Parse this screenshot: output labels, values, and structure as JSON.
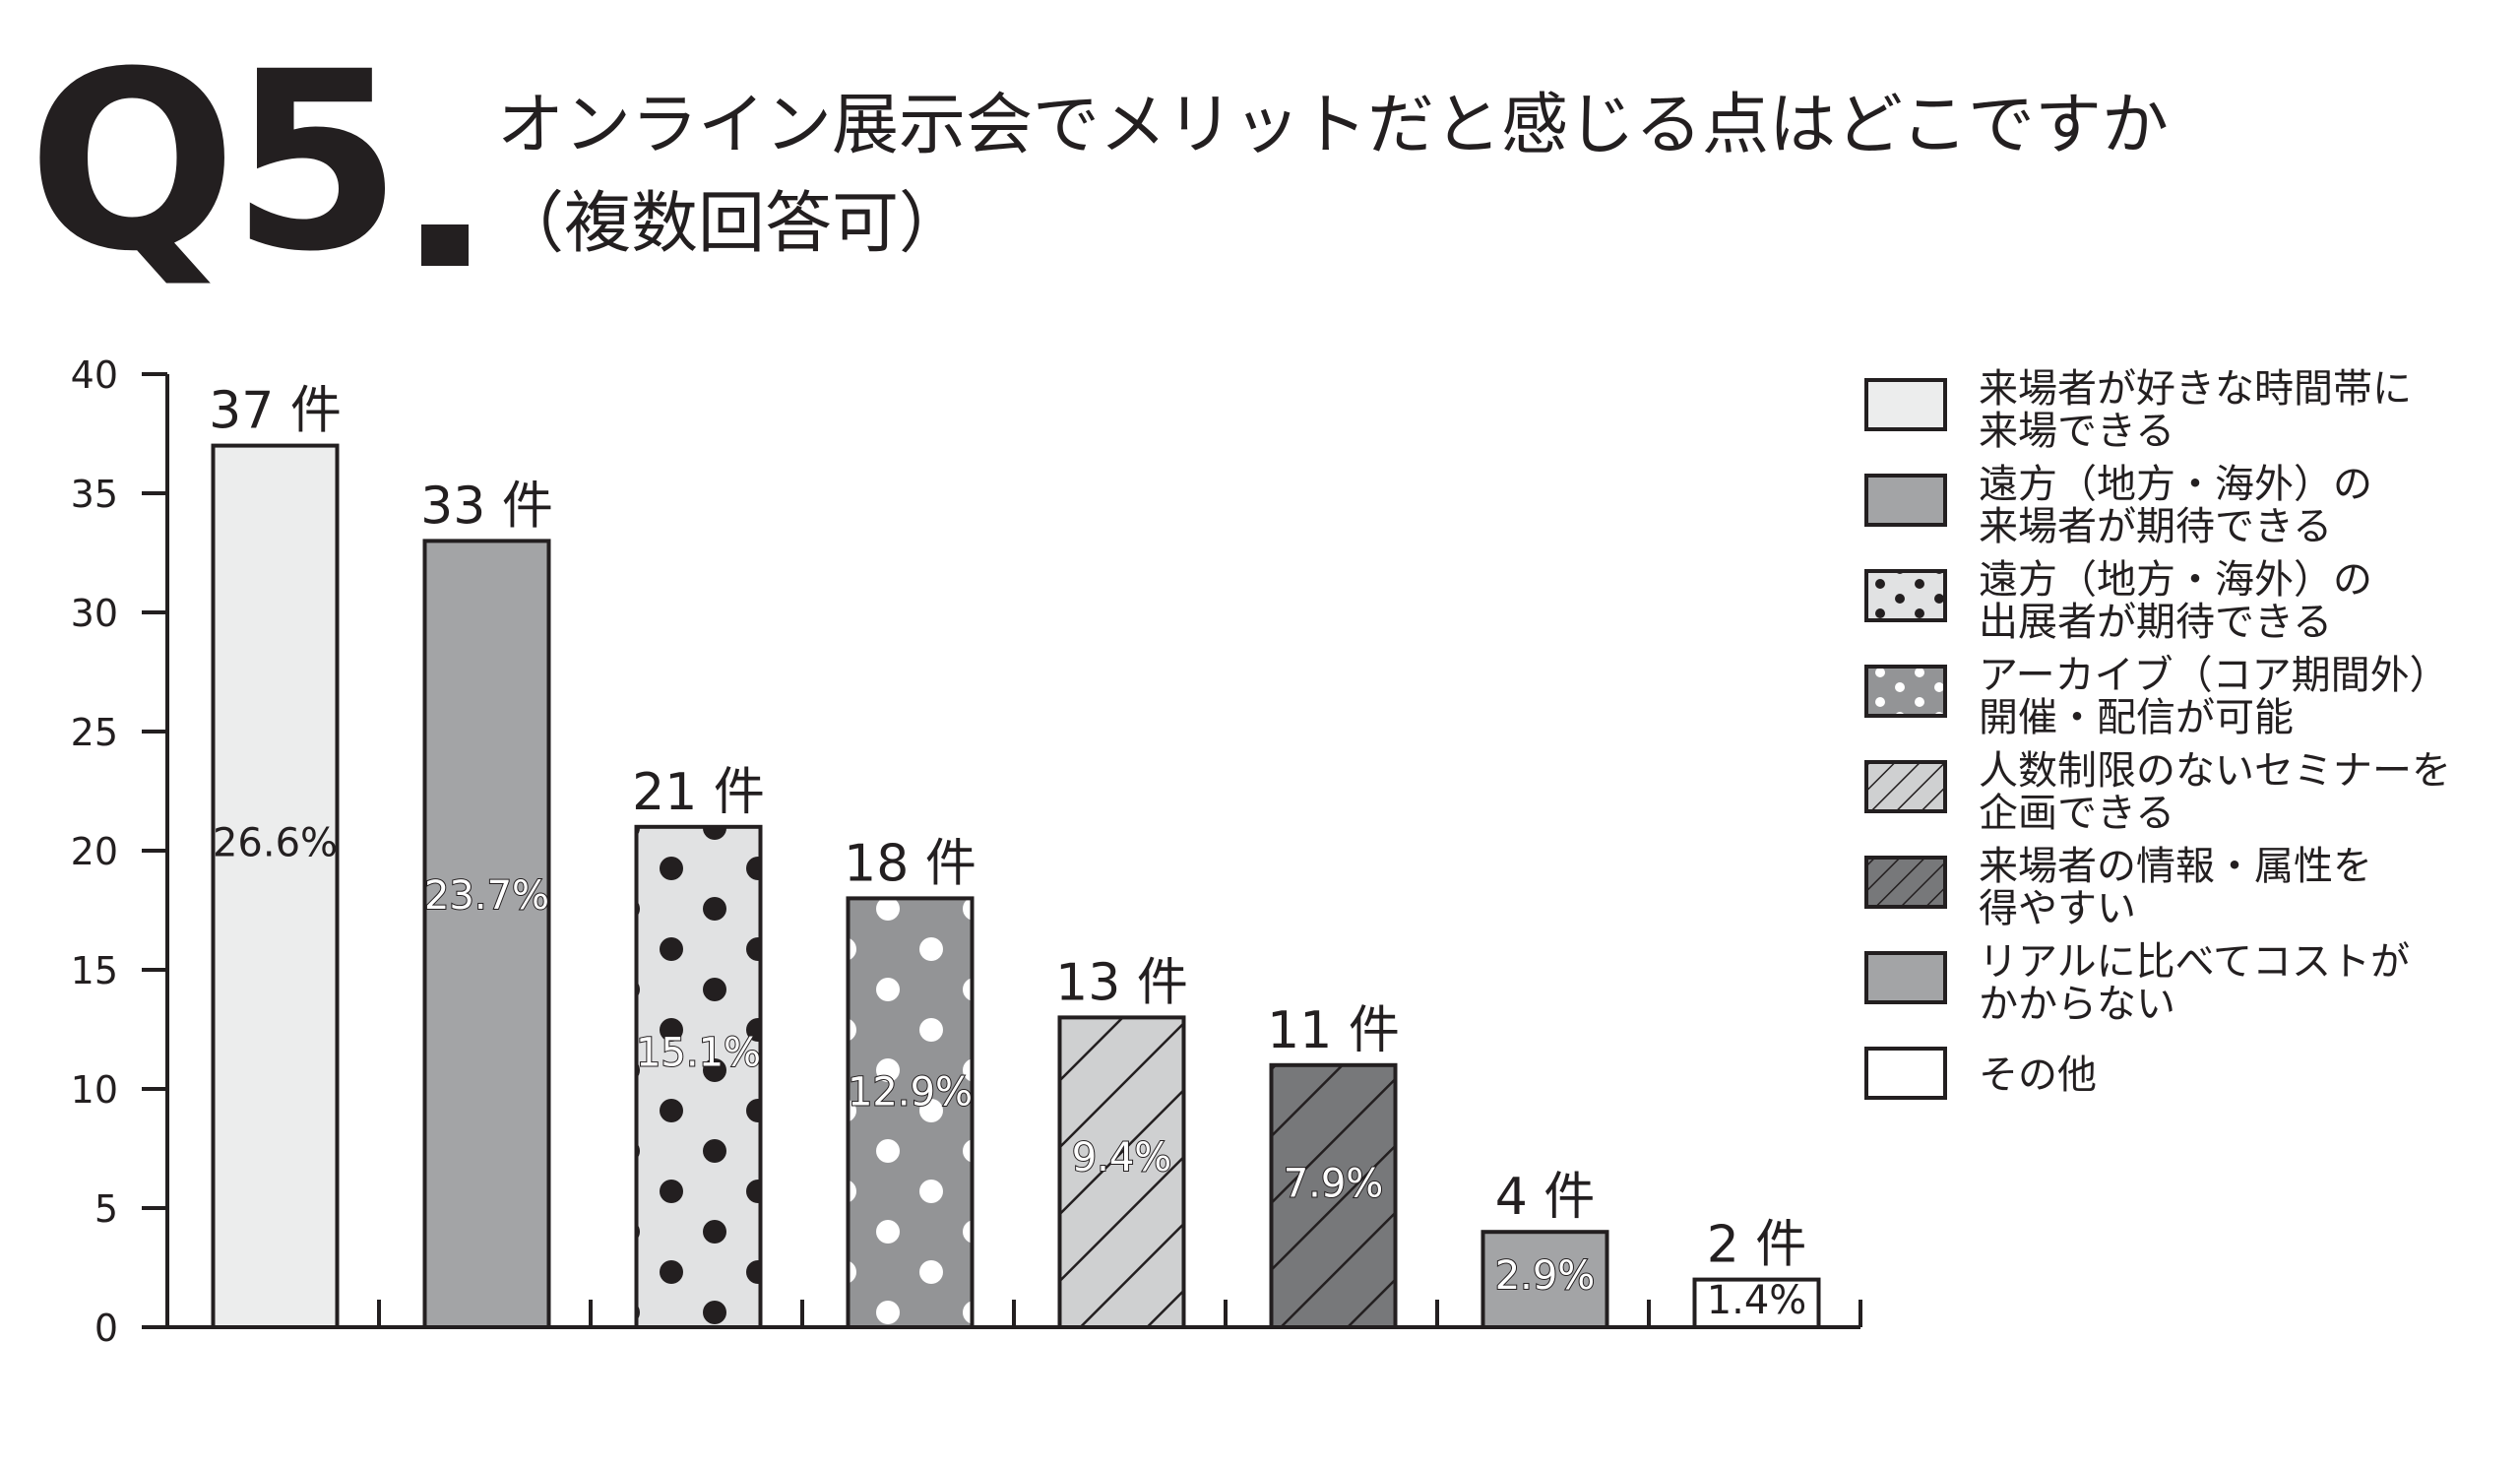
{
  "title": {
    "q": "Q5",
    "line1": "オンライン展示会でメリットだと感じる点はどこですか",
    "line2": "（複数回答可）"
  },
  "chart_data": {
    "type": "bar",
    "categories": [
      "来場者が好きな時間帯に来場できる",
      "遠方（地方・海外）の来場者が期待できる",
      "遠方（地方・海外）の出展者が期待できる",
      "アーカイブ（コア期間外）開催・配信が可能",
      "人数制限のないセミナーを企画できる",
      "来場者の情報・属性を得やすい",
      "リアルに比べてコストがかからない",
      "その他"
    ],
    "values": [
      37,
      33,
      21,
      18,
      13,
      11,
      4,
      2
    ],
    "count_labels": [
      "37 件",
      "33 件",
      "21 件",
      "18 件",
      "13 件",
      "11 件",
      "4 件",
      "2 件"
    ],
    "percent_labels": [
      "26.6%",
      "23.7%",
      "15.1%",
      "12.9%",
      "9.4%",
      "7.9%",
      "2.9%",
      "1.4%"
    ],
    "patterns": [
      "solid-light",
      "solid-gray",
      "dots-black-on-light",
      "dots-white-on-gray",
      "hatch-light",
      "hatch-dark",
      "solid-gray",
      "solid-white"
    ],
    "colors": [
      "#eceded",
      "#a3a4a6",
      "#e1e2e3",
      "#939496",
      "#cfd0d1",
      "#77787a",
      "#a3a4a6",
      "#ffffff"
    ],
    "ylim": [
      0,
      40
    ],
    "yticks": [
      "0",
      "5",
      "10",
      "15",
      "20",
      "25",
      "30",
      "35",
      "40"
    ],
    "legend": {
      "placement": "right",
      "items": [
        {
          "line1": "来場者が好きな時間帯に",
          "line2": "来場できる"
        },
        {
          "line1": "遠方（地方・海外）の",
          "line2": "来場者が期待できる"
        },
        {
          "line1": "遠方（地方・海外）の",
          "line2": "出展者が期待できる"
        },
        {
          "line1": "アーカイブ（コア期間外）",
          "line2": "開催・配信が可能"
        },
        {
          "line1": "人数制限のないセミナーを",
          "line2": "企画できる"
        },
        {
          "line1": "来場者の情報・属性を",
          "line2": "得やすい"
        },
        {
          "line1": "リアルに比べてコストが",
          "line2": "かからない"
        },
        {
          "line1": "その他",
          "line2": ""
        }
      ]
    }
  }
}
